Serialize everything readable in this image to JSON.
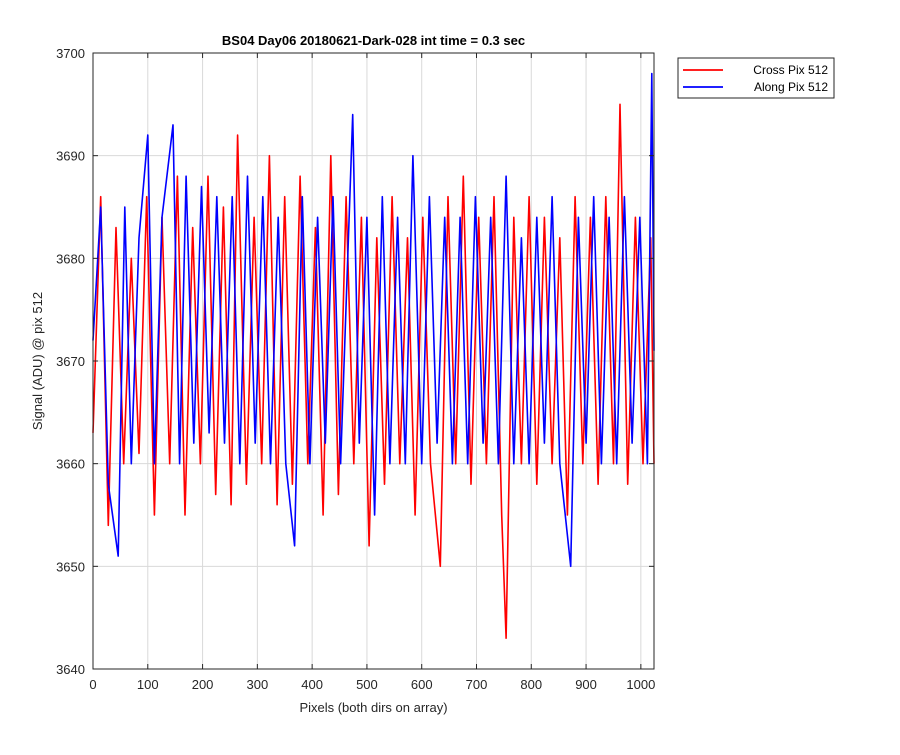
{
  "chart_data": {
    "type": "line",
    "title": "BS04 Day06 20180621-Dark-028 int time = 0.3 sec",
    "xlabel": "Pixels (both dirs on array)",
    "ylabel": "Signal (ADU) @ pix 512",
    "xlim": [
      0,
      1024
    ],
    "ylim": [
      3640,
      3700
    ],
    "xticks": [
      0,
      100,
      200,
      300,
      400,
      500,
      600,
      700,
      800,
      900,
      1000
    ],
    "yticks": [
      3640,
      3650,
      3660,
      3670,
      3680,
      3690,
      3700
    ],
    "grid": true,
    "legend_position": "outside-top-right",
    "series": [
      {
        "name": "Cross Pix 512",
        "color": "#ff0000",
        "x": [
          0,
          14,
          28,
          42,
          56,
          70,
          84,
          98,
          112,
          126,
          140,
          154,
          168,
          182,
          196,
          210,
          224,
          238,
          252,
          264,
          280,
          294,
          308,
          322,
          336,
          350,
          364,
          378,
          392,
          406,
          420,
          434,
          448,
          462,
          476,
          490,
          504,
          518,
          532,
          546,
          560,
          574,
          588,
          602,
          616,
          634,
          648,
          662,
          676,
          690,
          704,
          718,
          732,
          746,
          754,
          768,
          782,
          796,
          810,
          824,
          838,
          852,
          866,
          880,
          894,
          908,
          922,
          936,
          950,
          962,
          976,
          990,
          1004,
          1018,
          1024
        ],
        "values": [
          3663,
          3686,
          3654,
          3683,
          3660,
          3680,
          3661,
          3686,
          3655,
          3684,
          3660,
          3688,
          3655,
          3683,
          3660,
          3688,
          3657,
          3685,
          3656,
          3692,
          3658,
          3684,
          3660,
          3690,
          3656,
          3686,
          3658,
          3688,
          3660,
          3683,
          3655,
          3690,
          3657,
          3686,
          3660,
          3684,
          3652,
          3682,
          3658,
          3686,
          3660,
          3682,
          3655,
          3684,
          3660,
          3650,
          3686,
          3660,
          3688,
          3658,
          3684,
          3660,
          3686,
          3655,
          3643,
          3684,
          3660,
          3686,
          3658,
          3684,
          3660,
          3682,
          3655,
          3686,
          3660,
          3684,
          3658,
          3686,
          3660,
          3695,
          3658,
          3684,
          3660,
          3682,
          3660
        ]
      },
      {
        "name": "Along Pix 512",
        "color": "#0000ff",
        "x": [
          0,
          14,
          28,
          46,
          58,
          70,
          84,
          100,
          112,
          126,
          146,
          158,
          170,
          184,
          198,
          212,
          226,
          240,
          254,
          268,
          282,
          296,
          310,
          324,
          338,
          352,
          368,
          382,
          396,
          410,
          424,
          438,
          452,
          474,
          486,
          500,
          514,
          528,
          542,
          556,
          570,
          584,
          600,
          614,
          628,
          642,
          656,
          670,
          684,
          698,
          712,
          726,
          740,
          754,
          768,
          782,
          796,
          810,
          824,
          838,
          852,
          872,
          886,
          900,
          914,
          928,
          942,
          956,
          970,
          984,
          998,
          1012,
          1020,
          1024
        ],
        "values": [
          3672,
          3685,
          3658,
          3651,
          3685,
          3660,
          3682,
          3692,
          3660,
          3684,
          3693,
          3660,
          3688,
          3662,
          3687,
          3663,
          3686,
          3662,
          3686,
          3660,
          3688,
          3662,
          3686,
          3660,
          3684,
          3660,
          3652,
          3686,
          3660,
          3684,
          3662,
          3686,
          3660,
          3694,
          3662,
          3684,
          3655,
          3686,
          3660,
          3684,
          3660,
          3690,
          3660,
          3686,
          3662,
          3684,
          3660,
          3684,
          3660,
          3686,
          3662,
          3684,
          3660,
          3688,
          3660,
          3682,
          3660,
          3684,
          3662,
          3686,
          3660,
          3650,
          3684,
          3662,
          3686,
          3660,
          3684,
          3660,
          3686,
          3662,
          3684,
          3660,
          3698,
          3671
        ]
      }
    ]
  }
}
